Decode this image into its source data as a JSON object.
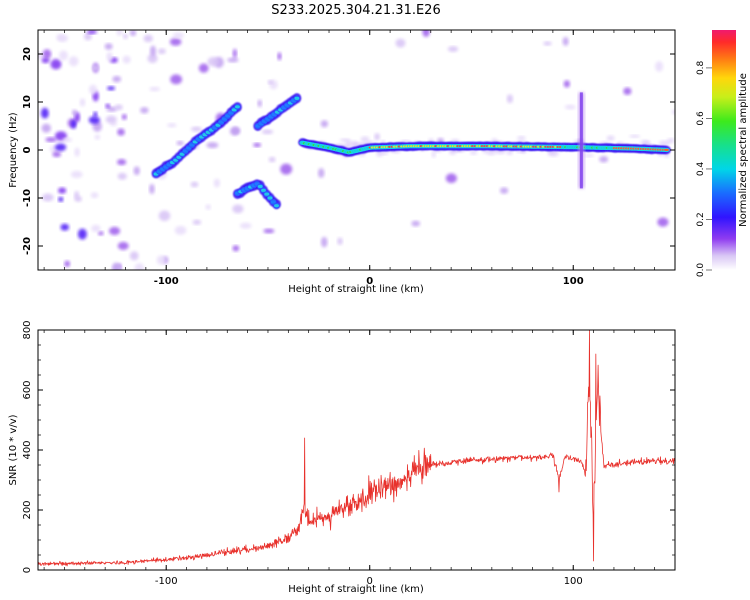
{
  "title": "S233.2025.304.21.31.E26",
  "colors": {
    "snr_line": "#e8312c",
    "background": "#ffffff",
    "axis": "#000000"
  },
  "chart_data": [
    {
      "type": "heatmap",
      "name": "spectrogram",
      "xlabel": "Height of straight line (km)",
      "ylabel": "Frequency (Hz)",
      "xlim": [
        -163,
        150
      ],
      "ylim": [
        -25,
        25
      ],
      "xticks": [
        -100,
        0,
        100
      ],
      "xtick_labels": [
        "-100",
        "0",
        "100"
      ],
      "yticks": [
        -20,
        -10,
        0,
        10,
        20
      ],
      "ytick_labels": [
        "-20",
        "-10",
        "0",
        "10",
        "20"
      ],
      "colorbar": {
        "label": "Normalized spectral amplitude",
        "range": [
          0,
          0.95
        ],
        "ticks": [
          0.0,
          0.2,
          0.4,
          0.6,
          0.8
        ],
        "tick_labels": [
          "0.0",
          "0.2",
          "0.4",
          "0.6",
          "0.8"
        ]
      },
      "features": [
        {
          "name": "dominant-line",
          "x": [
            -33,
            -20,
            -10,
            0,
            20,
            60,
            100,
            130,
            147
          ],
          "y": [
            1.5,
            0.5,
            -0.5,
            0.5,
            0.8,
            0.8,
            0.6,
            0.3,
            0.0
          ]
        },
        {
          "name": "rising-branch",
          "x": [
            -105,
            -95,
            -85,
            -75,
            -65
          ],
          "y": [
            -5,
            -2,
            2,
            5,
            9
          ]
        },
        {
          "name": "upper-branch",
          "x": [
            -55,
            -45,
            -35
          ],
          "y": [
            5,
            8,
            11
          ]
        },
        {
          "name": "lower-branch",
          "x": [
            -65,
            -55,
            -45
          ],
          "y": [
            -9,
            -7,
            -12
          ]
        },
        {
          "name": "transient-at-105km",
          "x": [
            104,
            104,
            104
          ],
          "y": [
            12,
            0,
            -8
          ]
        }
      ]
    },
    {
      "type": "line",
      "name": "snr",
      "xlabel": "Height of straight line (km)",
      "ylabel": "SNR (10 * v/v)",
      "xlim": [
        -163,
        150
      ],
      "ylim": [
        0,
        800
      ],
      "xticks": [
        -100,
        0,
        100
      ],
      "xtick_labels": [
        "-100",
        "0",
        "100"
      ],
      "yticks": [
        0,
        200,
        400,
        600,
        800
      ],
      "ytick_labels": [
        "0",
        "200",
        "400",
        "600",
        "800"
      ],
      "envelope_x": [
        -163,
        -120,
        -90,
        -70,
        -50,
        -40,
        -35,
        -32,
        -30,
        -25,
        -20,
        -15,
        -10,
        -5,
        0,
        10,
        20,
        30,
        40,
        60,
        80,
        90,
        93,
        96,
        100,
        104,
        106,
        108,
        110,
        112,
        115,
        130,
        150
      ],
      "envelope_y": [
        20,
        25,
        40,
        60,
        80,
        110,
        140,
        200,
        160,
        170,
        180,
        200,
        210,
        230,
        250,
        280,
        320,
        350,
        360,
        370,
        375,
        380,
        300,
        380,
        370,
        360,
        320,
        600,
        200,
        620,
        350,
        360,
        365
      ],
      "spikes": [
        {
          "x": -32,
          "y": 440
        },
        {
          "x": 108,
          "y": 800
        },
        {
          "x": 110,
          "y": 30
        },
        {
          "x": 111,
          "y": 720
        },
        {
          "x": 93,
          "y": 260
        }
      ]
    }
  ]
}
